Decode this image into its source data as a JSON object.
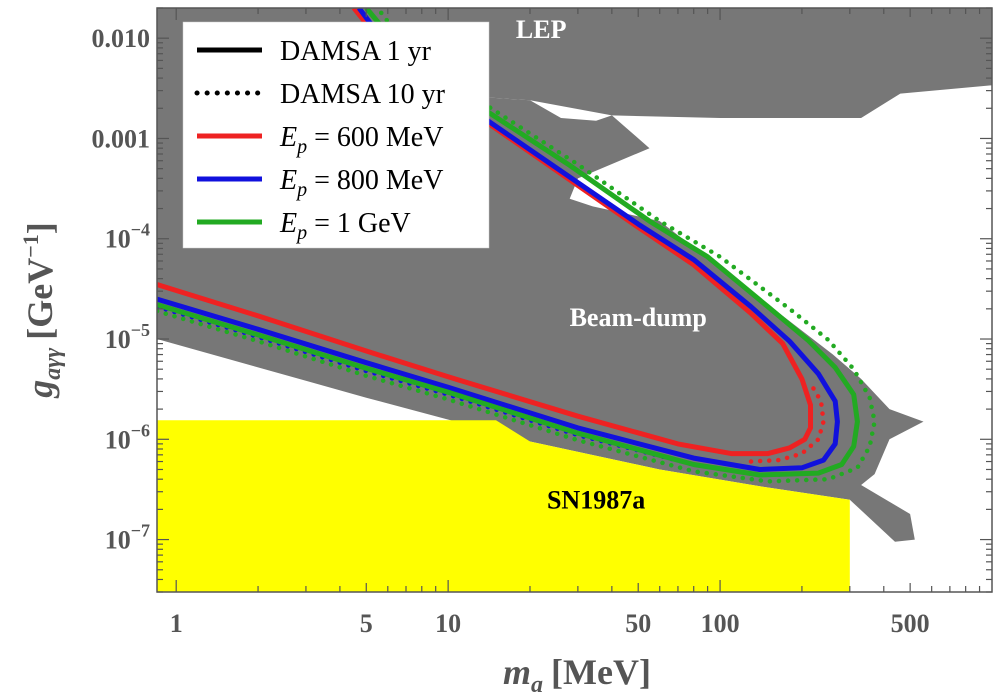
{
  "chart_data": {
    "type": "line",
    "xlabel": "m_a [MeV]",
    "ylabel": "g_aγγ [GeV^-1]",
    "xscale": "log",
    "yscale": "log",
    "xlim": [
      0.85,
      1000
    ],
    "ylim": [
      3e-08,
      0.02
    ],
    "x_ticks": [
      {
        "value": 1,
        "label": "1"
      },
      {
        "value": 5,
        "label": "5"
      },
      {
        "value": 10,
        "label": "10"
      },
      {
        "value": 50,
        "label": "50"
      },
      {
        "value": 100,
        "label": "100"
      },
      {
        "value": 500,
        "label": "500"
      }
    ],
    "y_ticks": [
      {
        "value": 1e-07,
        "label": "10",
        "exp": "−7"
      },
      {
        "value": 1e-06,
        "label": "10",
        "exp": "−6"
      },
      {
        "value": 1e-05,
        "label": "10",
        "exp": "−5"
      },
      {
        "value": 0.0001,
        "label": "10",
        "exp": "−4"
      },
      {
        "value": 0.001,
        "label": "0.001"
      },
      {
        "value": 0.01,
        "label": "0.010"
      }
    ],
    "regions": [
      {
        "name": "LEP",
        "label": "LEP",
        "color": "#777777",
        "label_color": "#ffffff",
        "label_at": [
          22,
          0.01
        ],
        "polygon": [
          [
            4.5,
            0.02
          ],
          [
            1000,
            0.02
          ],
          [
            1000,
            0.0034
          ],
          [
            460,
            0.0028
          ],
          [
            330,
            0.0016
          ],
          [
            100,
            0.0016
          ],
          [
            40,
            0.0017
          ],
          [
            20,
            0.0024
          ],
          [
            13,
            0.0026
          ],
          [
            9,
            0.0034
          ],
          [
            4.5,
            0.02
          ]
        ]
      },
      {
        "name": "Beam-dump",
        "label": "Beam-dump",
        "color": "#777777",
        "label_color": "#ffffff",
        "label_at": [
          50,
          1.35e-05
        ],
        "polygon": [
          [
            0.85,
            0.02
          ],
          [
            4.5,
            0.02
          ],
          [
            9,
            0.0034
          ],
          [
            13,
            0.0026
          ],
          [
            20,
            0.0024
          ],
          [
            26,
            0.0016
          ],
          [
            35,
            0.0015
          ],
          [
            40,
            0.0017
          ],
          [
            55,
            0.0008
          ],
          [
            30,
            0.0004
          ],
          [
            28,
            0.00025
          ],
          [
            34,
            0.00021
          ],
          [
            60,
            0.00015
          ],
          [
            260,
            7e-06
          ],
          [
            330,
            4e-06
          ],
          [
            420,
            2e-06
          ],
          [
            560,
            1.5e-06
          ],
          [
            420,
            1e-06
          ],
          [
            370,
            4.5e-07
          ],
          [
            330,
            3.5e-07
          ],
          [
            500,
            1.8e-07
          ],
          [
            520,
            1e-07
          ],
          [
            440,
            9.5e-08
          ],
          [
            300,
            2.5e-07
          ],
          [
            140,
            3.4e-07
          ],
          [
            60,
            5e-07
          ],
          [
            20,
            9.5e-07
          ],
          [
            5,
            2.6e-06
          ],
          [
            0.85,
            1e-05
          ]
        ]
      },
      {
        "name": "SN1987a",
        "label": "SN1987a",
        "color": "#ffff00",
        "label_color": "#000000",
        "label_at": [
          35,
          2.05e-07
        ],
        "polygon": [
          [
            0.85,
            1.55e-06
          ],
          [
            15,
            1.55e-06
          ],
          [
            20,
            9.5e-07
          ],
          [
            60,
            5e-07
          ],
          [
            140,
            3.4e-07
          ],
          [
            300,
            2.5e-07
          ],
          [
            300,
            3e-08
          ],
          [
            0.85,
            3e-08
          ]
        ]
      }
    ],
    "series": [
      {
        "name": "E_p = 600 MeV, DAMSA 1 yr",
        "color": "#ee2222",
        "style": "solid",
        "points": [
          [
            0.85,
            3.5e-05
          ],
          [
            2,
            1.7e-05
          ],
          [
            5,
            7.6e-06
          ],
          [
            10,
            4.2e-06
          ],
          [
            30,
            1.7e-06
          ],
          [
            70,
            9e-07
          ],
          [
            110,
            7.2e-07
          ],
          [
            150,
            7.2e-07
          ],
          [
            180,
            8.2e-07
          ],
          [
            205,
            1e-06
          ],
          [
            215,
            1.3e-06
          ],
          [
            215,
            2.2e-06
          ],
          [
            200,
            4e-06
          ],
          [
            170,
            9e-06
          ],
          [
            130,
            1.8e-05
          ],
          [
            80,
            5.5e-05
          ],
          [
            50,
            0.00013
          ],
          [
            25,
            0.00048
          ],
          [
            12,
            0.0019
          ],
          [
            6,
            0.0075
          ],
          [
            4.5,
            0.02
          ]
        ]
      },
      {
        "name": "E_p = 600 MeV, DAMSA 10 yr",
        "color": "#ee2222",
        "style": "dotted",
        "points": [
          [
            130,
            6e-07
          ],
          [
            165,
            6.2e-07
          ],
          [
            200,
            7.2e-07
          ],
          [
            230,
            1e-06
          ],
          [
            240,
            1.5e-06
          ],
          [
            235,
            2.4e-06
          ],
          [
            215,
            3.6e-06
          ]
        ]
      },
      {
        "name": "E_p = 800 MeV, DAMSA 1 yr",
        "color": "#1111dd",
        "style": "solid",
        "points": [
          [
            0.85,
            2.5e-05
          ],
          [
            2,
            1.25e-05
          ],
          [
            5,
            5.8e-06
          ],
          [
            10,
            3.3e-06
          ],
          [
            30,
            1.3e-06
          ],
          [
            80,
            6.5e-07
          ],
          [
            140,
            5e-07
          ],
          [
            200,
            5.2e-07
          ],
          [
            240,
            6.2e-07
          ],
          [
            265,
            9e-07
          ],
          [
            270,
            1.5e-06
          ],
          [
            265,
            2.4e-06
          ],
          [
            230,
            4.5e-06
          ],
          [
            180,
            9.5e-06
          ],
          [
            130,
            2.1e-05
          ],
          [
            80,
            6.2e-05
          ],
          [
            50,
            0.00014
          ],
          [
            25,
            0.00051
          ],
          [
            12,
            0.002
          ],
          [
            6,
            0.0082
          ],
          [
            4.7,
            0.02
          ]
        ]
      },
      {
        "name": "E_p = 800 MeV, DAMSA 10 yr",
        "color": "#1111dd",
        "style": "dotted",
        "points": [
          [
            0.85,
            2.1e-05
          ],
          [
            2,
            1.05e-05
          ],
          [
            5,
            4.8e-06
          ],
          [
            10,
            2.8e-06
          ],
          [
            30,
            1.1e-06
          ],
          [
            80,
            5.6e-07
          ],
          [
            140,
            4.4e-07
          ],
          [
            190,
            4.5e-07
          ]
        ]
      },
      {
        "name": "E_p = 1 GeV, DAMSA 1 yr",
        "color": "#22aa22",
        "style": "solid",
        "points": [
          [
            0.85,
            2.2e-05
          ],
          [
            2,
            1.1e-05
          ],
          [
            5,
            5.1e-06
          ],
          [
            10,
            2.95e-06
          ],
          [
            30,
            1.15e-06
          ],
          [
            80,
            5.6e-07
          ],
          [
            140,
            4.4e-07
          ],
          [
            230,
            4.6e-07
          ],
          [
            280,
            5.6e-07
          ],
          [
            310,
            8.5e-07
          ],
          [
            320,
            1.5e-06
          ],
          [
            310,
            2.8e-06
          ],
          [
            265,
            5.2e-06
          ],
          [
            210,
            9.8e-06
          ],
          [
            150,
            2.1e-05
          ],
          [
            90,
            6.6e-05
          ],
          [
            55,
            0.00015
          ],
          [
            28,
            0.00054
          ],
          [
            13,
            0.0021
          ],
          [
            6.5,
            0.0085
          ],
          [
            5,
            0.02
          ]
        ]
      },
      {
        "name": "E_p = 1 GeV, DAMSA 10 yr",
        "color": "#22aa22",
        "style": "dotted",
        "points": [
          [
            0.85,
            1.9e-05
          ],
          [
            2,
            9.5e-06
          ],
          [
            5,
            4.3e-06
          ],
          [
            10,
            2.5e-06
          ],
          [
            30,
            9.8e-07
          ],
          [
            80,
            4.8e-07
          ],
          [
            150,
            3.8e-07
          ],
          [
            250,
            4e-07
          ],
          [
            320,
            5.2e-07
          ],
          [
            355,
            8.5e-07
          ],
          [
            370,
            1.5e-06
          ],
          [
            355,
            2.6e-06
          ],
          [
            310,
            5e-06
          ],
          [
            250,
            9.8e-06
          ],
          [
            180,
            2e-05
          ],
          [
            100,
            6.6e-05
          ],
          [
            60,
            0.00015
          ],
          [
            30,
            0.00055
          ],
          [
            14,
            0.0021
          ],
          [
            7,
            0.0085
          ],
          [
            5.5,
            0.02
          ]
        ]
      }
    ],
    "legend": {
      "placement": "top-left",
      "entries": [
        {
          "text": "DAMSA 1 yr",
          "style": "solid",
          "color": "#000000"
        },
        {
          "text": "DAMSA 10 yr",
          "style": "dotted",
          "color": "#000000"
        },
        {
          "text": "600 MeV",
          "prefix": "E",
          "sub": "p",
          "color": "#ee2222",
          "style": "solid"
        },
        {
          "text": "800 MeV",
          "prefix": "E",
          "sub": "p",
          "color": "#1111dd",
          "style": "solid"
        },
        {
          "text": "1 GeV",
          "prefix": "E",
          "sub": "p",
          "color": "#22aa22",
          "style": "solid"
        }
      ]
    }
  }
}
